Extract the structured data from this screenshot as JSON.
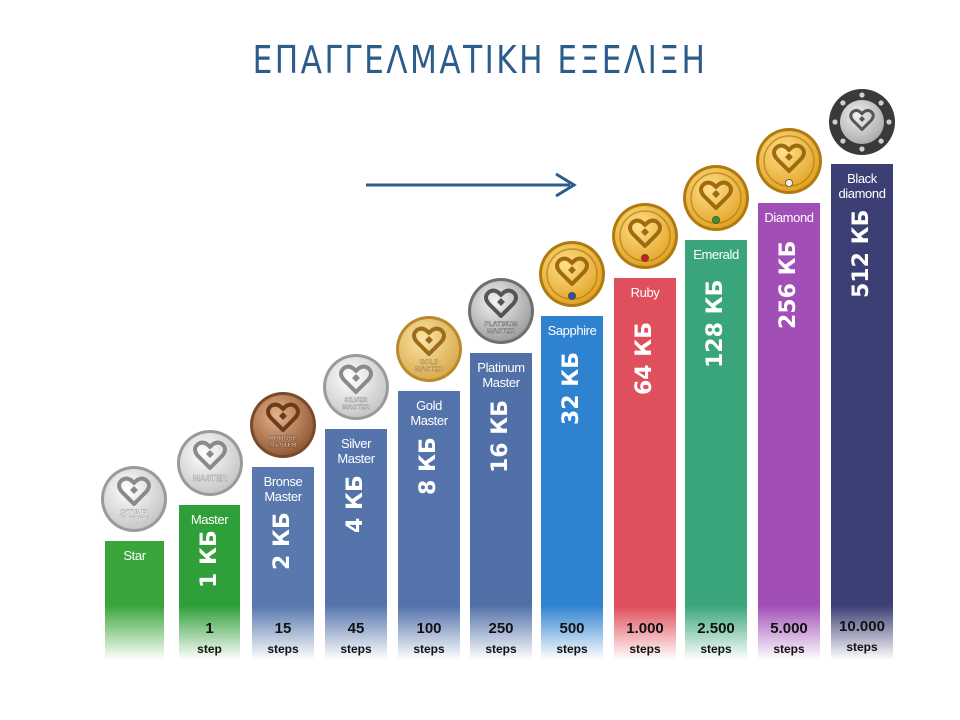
{
  "title": "ΕΠΑΓΓΕΛΜΑΤΙΚΗ ΕΞΕΛΙΞΗ",
  "levels": [
    {
      "name": "Star",
      "rate": "",
      "steps": "",
      "steps_unit": "",
      "badge_label": "STAR",
      "badge_type": "silver",
      "color": "#3aa53a",
      "height_fraction": 0.0
    },
    {
      "name": "Master",
      "rate": "1 КБ",
      "steps": "1",
      "steps_unit": "step",
      "badge_label": "MASTER",
      "badge_type": "silver",
      "color": "#2f9f3a",
      "height_fraction": 0.0
    },
    {
      "name": "Bronse Master",
      "rate": "2 КБ",
      "steps": "15",
      "steps_unit": "steps",
      "badge_label": "BRONSE MASTER",
      "badge_type": "bronze",
      "color": "#5878ae",
      "height_fraction": 0.0
    },
    {
      "name": "Silver Master",
      "rate": "4 КБ",
      "steps": "45",
      "steps_unit": "steps",
      "badge_label": "SILVER MASTER",
      "badge_type": "silver",
      "color": "#5574ac",
      "height_fraction": 0.0
    },
    {
      "name": "Gold Master",
      "rate": "8 КБ",
      "steps": "100",
      "steps_unit": "steps",
      "badge_label": "GOLD MASTER",
      "badge_type": "gold",
      "color": "#5573ab",
      "height_fraction": 0.0
    },
    {
      "name": "Platinum Master",
      "rate": "16 КБ",
      "steps": "250",
      "steps_unit": "steps",
      "badge_label": "PLATINUM MASTER",
      "badge_type": "platinum",
      "color": "#5170a8",
      "height_fraction": 0.0
    },
    {
      "name": "Sapphire",
      "rate": "32 КБ",
      "steps": "500",
      "steps_unit": "steps",
      "badge_label": "",
      "badge_type": "gold-sapphire",
      "color": "#2e82cf",
      "height_fraction": 0.0
    },
    {
      "name": "Ruby",
      "rate": "64 КБ",
      "steps": "1.000",
      "steps_unit": "steps",
      "badge_label": "",
      "badge_type": "gold-ruby",
      "color": "#e0505c",
      "height_fraction": 0.0
    },
    {
      "name": "Emerald",
      "rate": "128 КБ",
      "steps": "2.500",
      "steps_unit": "steps",
      "badge_label": "",
      "badge_type": "gold-emerald",
      "color": "#3aa57a",
      "height_fraction": 0.0
    },
    {
      "name": "Diamond",
      "rate": "256 КБ",
      "steps": "5.000",
      "steps_unit": "steps",
      "badge_label": "",
      "badge_type": "gold-diamond",
      "color": "#a14fb7",
      "height_fraction": 0.0
    },
    {
      "name": "Black diamond",
      "rate": "512 КБ",
      "steps": "10.000",
      "steps_unit": "steps",
      "badge_label": "",
      "badge_type": "black-diamond",
      "color": "#3c3f74",
      "height_fraction": 0.0
    }
  ]
}
